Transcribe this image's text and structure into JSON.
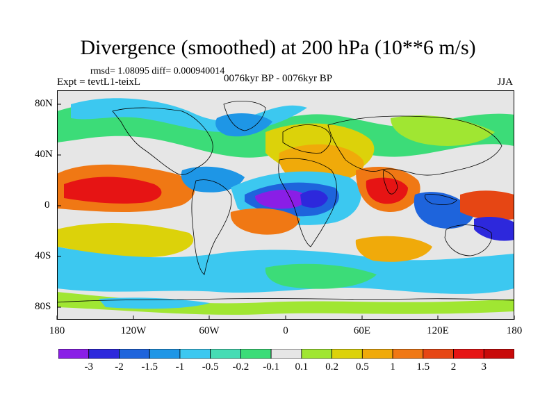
{
  "title": "Divergence (smoothed) at 200 hPa (10**6 m/s)",
  "stats": "rmsd= 1.08095 diff= 0.000940014",
  "experiment": "Expt = tevtL1-teixL",
  "period": "0076kyr BP - 0076kyr BP",
  "season": "JJA",
  "axes": {
    "y_labels": [
      "80N",
      "40N",
      "0",
      "40S",
      "80S"
    ],
    "x_labels": [
      "180",
      "120W",
      "60W",
      "0",
      "60E",
      "120E",
      "180"
    ]
  },
  "colorbar": {
    "levels": [
      "-3",
      "-2",
      "-1.5",
      "-1",
      "-0.5",
      "-0.2",
      "-0.1",
      "0.1",
      "0.2",
      "0.5",
      "1",
      "1.5",
      "2",
      "3"
    ],
    "colors": [
      "#8a1ee6",
      "#2d28dc",
      "#1e64dc",
      "#1e96e6",
      "#3cc8f0",
      "#46dcb4",
      "#3cdc78",
      "#e6e6e6",
      "#a0e632",
      "#dcd20a",
      "#f0aa0a",
      "#f07814",
      "#e64614",
      "#e61414",
      "#c80a0a"
    ]
  }
}
